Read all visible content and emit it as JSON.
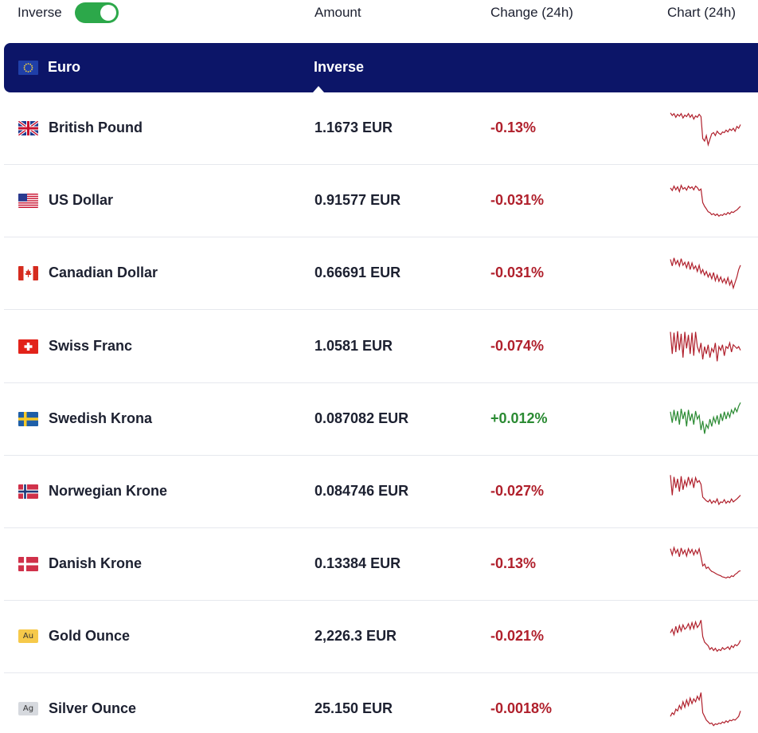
{
  "header": {
    "inverse_label": "Inverse",
    "toggle_on": true,
    "col_amount": "Amount",
    "col_change": "Change (24h)",
    "col_chart": "Chart (24h)"
  },
  "base": {
    "name": "Euro",
    "flag_icon": "eu-flag-icon",
    "mode_label": "Inverse"
  },
  "colors": {
    "base_row_bg": "#0c1568",
    "negative": "#b0202c",
    "positive": "#2a8a32",
    "toggle_on": "#2ca84a"
  },
  "rows": [
    {
      "name": "British Pound",
      "flag_icon": "gb-flag-icon",
      "amount": "1.1673 EUR",
      "change": "-0.13%",
      "trend": "negative",
      "spark": [
        0.92,
        0.85,
        0.9,
        0.8,
        0.88,
        0.83,
        0.9,
        0.78,
        0.86,
        0.82,
        0.9,
        0.8,
        0.87,
        0.75,
        0.84,
        0.8,
        0.88,
        0.82,
        0.22,
        0.15,
        0.3,
        0.05,
        0.2,
        0.35,
        0.38,
        0.3,
        0.42,
        0.36,
        0.33,
        0.4,
        0.38,
        0.45,
        0.4,
        0.48,
        0.44,
        0.5,
        0.42,
        0.55,
        0.5,
        0.6
      ]
    },
    {
      "name": "US Dollar",
      "flag_icon": "us-flag-icon",
      "amount": "0.91577 EUR",
      "change": "-0.031%",
      "trend": "negative",
      "spark": [
        0.85,
        0.78,
        0.9,
        0.8,
        0.88,
        0.75,
        0.92,
        0.82,
        0.86,
        0.79,
        0.9,
        0.84,
        0.88,
        0.8,
        0.9,
        0.86,
        0.78,
        0.82,
        0.45,
        0.35,
        0.28,
        0.2,
        0.18,
        0.12,
        0.15,
        0.1,
        0.14,
        0.08,
        0.12,
        0.1,
        0.15,
        0.12,
        0.18,
        0.14,
        0.2,
        0.18,
        0.22,
        0.25,
        0.3,
        0.35
      ]
    },
    {
      "name": "Canadian Dollar",
      "flag_icon": "ca-flag-icon",
      "amount": "0.66691 EUR",
      "change": "-0.031%",
      "trend": "negative",
      "spark": [
        0.88,
        0.7,
        0.92,
        0.75,
        0.85,
        0.7,
        0.9,
        0.72,
        0.8,
        0.65,
        0.82,
        0.6,
        0.78,
        0.62,
        0.7,
        0.55,
        0.72,
        0.5,
        0.6,
        0.45,
        0.55,
        0.4,
        0.5,
        0.35,
        0.52,
        0.3,
        0.45,
        0.28,
        0.4,
        0.25,
        0.35,
        0.22,
        0.38,
        0.18,
        0.3,
        0.1,
        0.25,
        0.4,
        0.6,
        0.72
      ]
    },
    {
      "name": "Swiss Franc",
      "flag_icon": "ch-flag-icon",
      "amount": "1.0581 EUR",
      "change": "-0.074%",
      "trend": "negative",
      "spark": [
        0.9,
        0.3,
        0.88,
        0.35,
        0.92,
        0.4,
        0.85,
        0.2,
        0.9,
        0.45,
        0.82,
        0.3,
        0.88,
        0.25,
        0.9,
        0.5,
        0.35,
        0.6,
        0.15,
        0.5,
        0.3,
        0.55,
        0.2,
        0.45,
        0.35,
        0.6,
        0.1,
        0.5,
        0.4,
        0.55,
        0.25,
        0.5,
        0.45,
        0.6,
        0.35,
        0.55,
        0.5,
        0.45,
        0.5,
        0.4
      ]
    },
    {
      "name": "Swedish Krona",
      "flag_icon": "se-flag-icon",
      "amount": "0.087082 EUR",
      "change": "+0.012%",
      "trend": "positive",
      "spark": [
        0.7,
        0.4,
        0.75,
        0.45,
        0.72,
        0.35,
        0.78,
        0.5,
        0.7,
        0.3,
        0.75,
        0.45,
        0.65,
        0.35,
        0.72,
        0.5,
        0.6,
        0.2,
        0.45,
        0.1,
        0.35,
        0.25,
        0.5,
        0.3,
        0.55,
        0.4,
        0.6,
        0.35,
        0.65,
        0.45,
        0.7,
        0.5,
        0.68,
        0.55,
        0.75,
        0.65,
        0.8,
        0.7,
        0.85,
        0.95
      ]
    },
    {
      "name": "Norwegian Krone",
      "flag_icon": "no-flag-icon",
      "amount": "0.084746 EUR",
      "change": "-0.027%",
      "trend": "negative",
      "spark": [
        0.95,
        0.4,
        0.9,
        0.6,
        0.85,
        0.5,
        0.92,
        0.55,
        0.8,
        0.65,
        0.9,
        0.7,
        0.85,
        0.6,
        0.88,
        0.75,
        0.8,
        0.7,
        0.35,
        0.3,
        0.25,
        0.22,
        0.28,
        0.18,
        0.25,
        0.2,
        0.3,
        0.15,
        0.22,
        0.2,
        0.28,
        0.18,
        0.24,
        0.2,
        0.3,
        0.22,
        0.26,
        0.3,
        0.35,
        0.4
      ]
    },
    {
      "name": "Danish Krone",
      "flag_icon": "dk-flag-icon",
      "amount": "0.13384 EUR",
      "change": "-0.13%",
      "trend": "negative",
      "spark": [
        0.92,
        0.75,
        0.95,
        0.8,
        0.9,
        0.7,
        0.94,
        0.78,
        0.88,
        0.72,
        0.92,
        0.8,
        0.9,
        0.75,
        0.88,
        0.78,
        0.92,
        0.7,
        0.45,
        0.5,
        0.38,
        0.42,
        0.35,
        0.3,
        0.28,
        0.25,
        0.22,
        0.2,
        0.18,
        0.15,
        0.14,
        0.12,
        0.15,
        0.13,
        0.18,
        0.16,
        0.22,
        0.25,
        0.3,
        0.32
      ]
    },
    {
      "name": "Gold Ounce",
      "flag_icon": "gold-icon",
      "metal_symbol": "Au",
      "amount": "2,226.3 EUR",
      "change": "-0.021%",
      "trend": "negative",
      "spark": [
        0.6,
        0.7,
        0.55,
        0.78,
        0.6,
        0.8,
        0.65,
        0.82,
        0.7,
        0.75,
        0.85,
        0.7,
        0.88,
        0.72,
        0.9,
        0.75,
        0.82,
        0.95,
        0.5,
        0.35,
        0.3,
        0.25,
        0.15,
        0.2,
        0.12,
        0.18,
        0.1,
        0.15,
        0.12,
        0.2,
        0.15,
        0.18,
        0.22,
        0.15,
        0.25,
        0.2,
        0.28,
        0.25,
        0.3,
        0.4
      ]
    },
    {
      "name": "Silver Ounce",
      "flag_icon": "silver-icon",
      "metal_symbol": "Ag",
      "amount": "25.150 EUR",
      "change": "-0.0018%",
      "trend": "negative",
      "spark": [
        0.3,
        0.4,
        0.35,
        0.5,
        0.45,
        0.6,
        0.5,
        0.7,
        0.55,
        0.75,
        0.6,
        0.8,
        0.65,
        0.78,
        0.7,
        0.85,
        0.75,
        0.95,
        0.4,
        0.3,
        0.2,
        0.15,
        0.1,
        0.12,
        0.05,
        0.1,
        0.08,
        0.12,
        0.1,
        0.15,
        0.12,
        0.18,
        0.14,
        0.2,
        0.18,
        0.22,
        0.2,
        0.25,
        0.3,
        0.45
      ]
    }
  ]
}
